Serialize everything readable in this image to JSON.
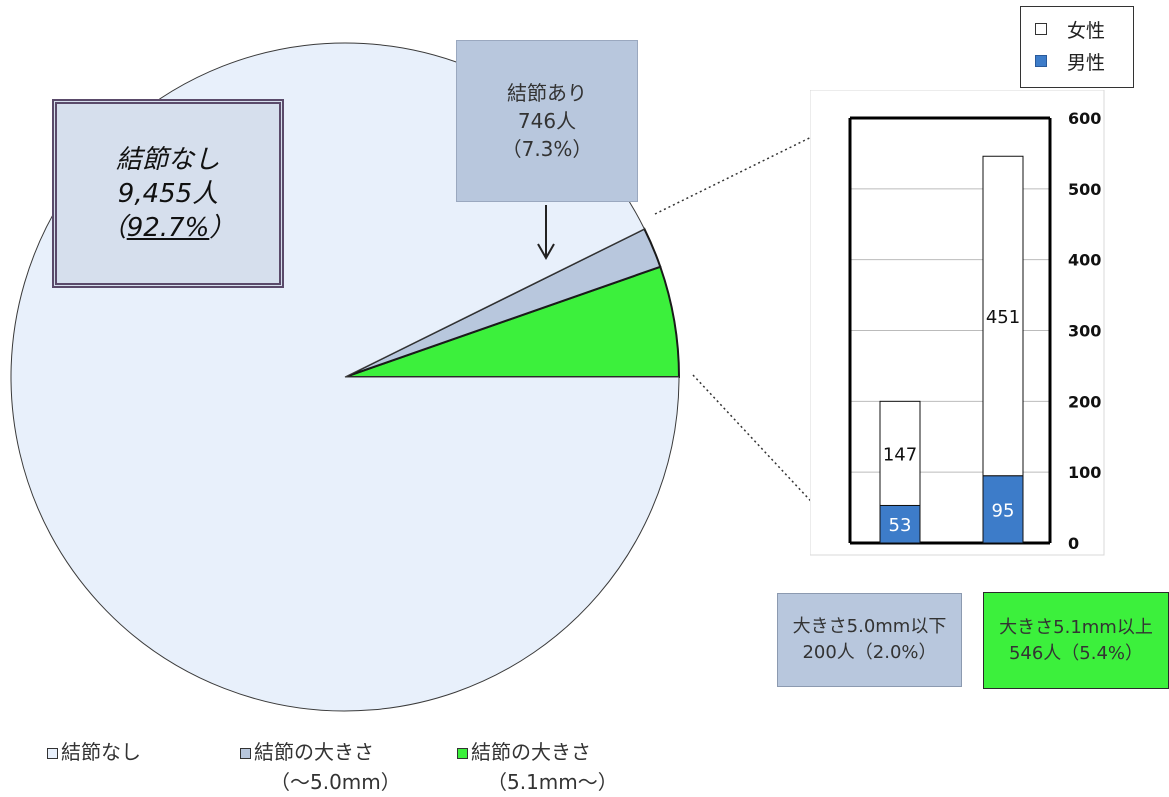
{
  "chart_data": [
    {
      "type": "pie",
      "title": "",
      "slices": [
        {
          "label": "結節なし",
          "value": 9455,
          "color": "#e8f0fb"
        },
        {
          "label": "結節の大きさ（〜5.0mm）",
          "value": 200,
          "color": "#b8c7dd"
        },
        {
          "label": "結節の大きさ（5.1mm〜）",
          "value": 546,
          "color": "#3cf03c"
        }
      ],
      "callouts": {
        "no_nodule": {
          "line1": "結節なし",
          "line2": "9,455人",
          "line3_open": "（",
          "line3_pct": "92.7%",
          "line3_close": "）"
        },
        "with_nodule": {
          "line1": "結節あり",
          "line2": "746人",
          "line3": "（7.3%）"
        }
      },
      "legend": [
        {
          "label": "結節なし",
          "sub": "",
          "color": "#e8f0fb"
        },
        {
          "label": "結節の大きさ",
          "sub": "（〜5.0mm）",
          "color": "#b8c7dd"
        },
        {
          "label": "結節の大きさ",
          "sub": "（5.1mm〜）",
          "color": "#3cf03c"
        }
      ]
    },
    {
      "type": "bar",
      "stacked": true,
      "categories": [
        "大きさ5.0mm以下",
        "大きさ5.1mm以上"
      ],
      "series": [
        {
          "name": "男性",
          "values": [
            53,
            95
          ],
          "color": "#3d7cc9"
        },
        {
          "name": "女性",
          "values": [
            147,
            451
          ],
          "color": "#ffffff"
        }
      ],
      "ylim": [
        0,
        600
      ],
      "yticks": [
        0,
        100,
        200,
        300,
        400,
        500,
        600
      ],
      "grid": true,
      "legend_position": "top-right"
    }
  ],
  "size_boxes": [
    {
      "line1": "大きさ5.0mm以下",
      "line2": "200人（2.0%）"
    },
    {
      "line1": "大きさ5.1mm以上",
      "line2": "546人（5.4%）"
    }
  ]
}
